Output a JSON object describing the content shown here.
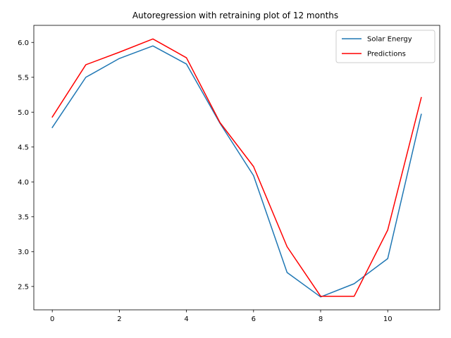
{
  "chart_data": {
    "type": "line",
    "title": "Autoregression with retraining plot of 12 months",
    "xlabel": "",
    "ylabel": "",
    "x": [
      0,
      1,
      2,
      3,
      4,
      5,
      6,
      7,
      8,
      9,
      10,
      11
    ],
    "series": [
      {
        "name": "Solar Energy",
        "color": "#1f77b4",
        "values": [
          4.78,
          5.5,
          5.77,
          5.95,
          5.69,
          4.84,
          4.09,
          2.7,
          2.35,
          2.54,
          2.9,
          4.97
        ]
      },
      {
        "name": "Predictions",
        "color": "#ff0000",
        "values": [
          4.93,
          5.68,
          5.86,
          6.05,
          5.78,
          4.85,
          4.22,
          3.07,
          2.36,
          2.36,
          3.31,
          5.21
        ]
      }
    ],
    "xlim": [
      -0.55,
      11.55
    ],
    "ylim": [
      2.165,
      6.245
    ],
    "xticks": [
      0,
      2,
      4,
      6,
      8,
      10
    ],
    "xtick_labels": [
      "0",
      "2",
      "4",
      "6",
      "8",
      "10"
    ],
    "yticks": [
      2.5,
      3.0,
      3.5,
      4.0,
      4.5,
      5.0,
      5.5,
      6.0
    ],
    "ytick_labels": [
      "2.5",
      "3.0",
      "3.5",
      "4.0",
      "4.5",
      "5.0",
      "5.5",
      "6.0"
    ],
    "grid": false,
    "legend_position": "top-right"
  }
}
